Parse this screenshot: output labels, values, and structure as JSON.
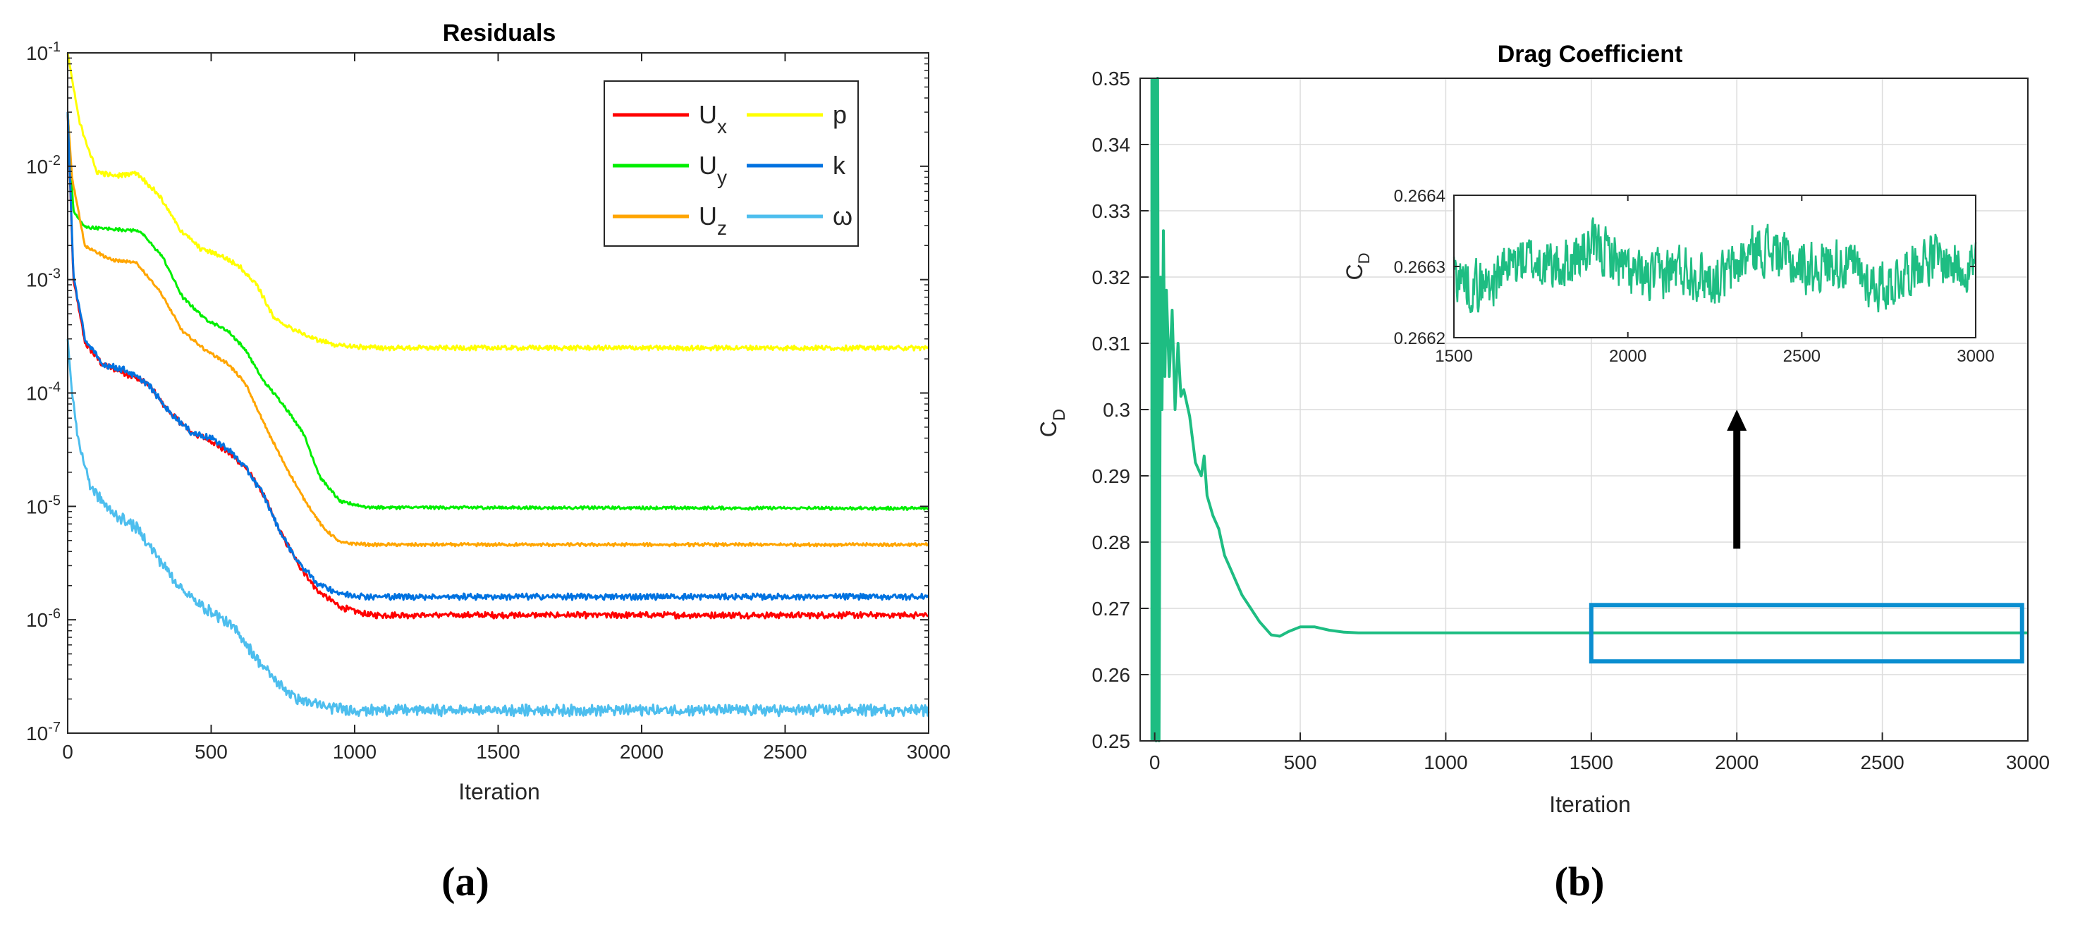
{
  "chart_data": [
    {
      "id": "a",
      "type": "line",
      "title": "Residuals",
      "caption": "(a)",
      "xlabel": "Iteration",
      "ylabel": "",
      "yscale": "log",
      "xlim": [
        0,
        3000
      ],
      "ylim": [
        1e-07,
        0.1
      ],
      "xticks": [
        0,
        500,
        1000,
        1500,
        2000,
        2500,
        3000
      ],
      "xtick_labels": [
        "0",
        "500",
        "1000",
        "1500",
        "2000",
        "2500",
        "3000"
      ],
      "yticks": [
        1e-07,
        1e-06,
        1e-05,
        0.0001,
        0.001,
        0.01,
        0.1
      ],
      "ytick_labels": [
        {
          "base": "10",
          "exp": "-7"
        },
        {
          "base": "10",
          "exp": "-6"
        },
        {
          "base": "10",
          "exp": "-5"
        },
        {
          "base": "10",
          "exp": "-4"
        },
        {
          "base": "10",
          "exp": "-3"
        },
        {
          "base": "10",
          "exp": "-2"
        },
        {
          "base": "10",
          "exp": "-1"
        }
      ],
      "legend_placement": "top-right",
      "series": [
        {
          "name": "Ux",
          "label": "U",
          "sub": "x",
          "color": "#ff0000",
          "noise": 0.05,
          "points": [
            [
              0,
              0.03
            ],
            [
              20,
              0.001
            ],
            [
              60,
              0.00028
            ],
            [
              120,
              0.00018
            ],
            [
              200,
              0.00015
            ],
            [
              280,
              0.00012
            ],
            [
              350,
              7e-05
            ],
            [
              430,
              4.5e-05
            ],
            [
              500,
              3.8e-05
            ],
            [
              560,
              3e-05
            ],
            [
              620,
              2.2e-05
            ],
            [
              680,
              1.3e-05
            ],
            [
              740,
              6e-06
            ],
            [
              800,
              3.2e-06
            ],
            [
              870,
              1.8e-06
            ],
            [
              950,
              1.3e-06
            ],
            [
              1050,
              1.1e-06
            ],
            [
              3000,
              1.1e-06
            ]
          ]
        },
        {
          "name": "Uy",
          "label": "U",
          "sub": "y",
          "color": "#00ee00",
          "noise": 0.025,
          "points": [
            [
              0,
              0.03
            ],
            [
              20,
              0.004
            ],
            [
              60,
              0.0029
            ],
            [
              150,
              0.0028
            ],
            [
              250,
              0.0027
            ],
            [
              330,
              0.0016
            ],
            [
              400,
              0.0007
            ],
            [
              480,
              0.00045
            ],
            [
              560,
              0.00035
            ],
            [
              620,
              0.00024
            ],
            [
              680,
              0.00013
            ],
            [
              750,
              8e-05
            ],
            [
              820,
              4.5e-05
            ],
            [
              880,
              1.8e-05
            ],
            [
              950,
              1.1e-05
            ],
            [
              1050,
              9.8e-06
            ],
            [
              3000,
              9.6e-06
            ]
          ]
        },
        {
          "name": "Uz",
          "label": "U",
          "sub": "z",
          "color": "#ffa500",
          "noise": 0.025,
          "points": [
            [
              0,
              0.03
            ],
            [
              15,
              0.008
            ],
            [
              60,
              0.002
            ],
            [
              150,
              0.0015
            ],
            [
              240,
              0.0014
            ],
            [
              320,
              0.0008
            ],
            [
              400,
              0.00035
            ],
            [
              480,
              0.00024
            ],
            [
              560,
              0.00018
            ],
            [
              620,
              0.00012
            ],
            [
              690,
              5e-05
            ],
            [
              750,
              2.5e-05
            ],
            [
              820,
              1.2e-05
            ],
            [
              890,
              6.5e-06
            ],
            [
              950,
              4.8e-06
            ],
            [
              1050,
              4.6e-06
            ],
            [
              3000,
              4.6e-06
            ]
          ]
        },
        {
          "name": "p",
          "label": "p",
          "sub": "",
          "color": "#ffff00",
          "noise": 0.04,
          "points": [
            [
              0,
              0.1
            ],
            [
              40,
              0.025
            ],
            [
              100,
              0.009
            ],
            [
              160,
              0.0082
            ],
            [
              240,
              0.0088
            ],
            [
              320,
              0.0055
            ],
            [
              390,
              0.0028
            ],
            [
              460,
              0.0019
            ],
            [
              540,
              0.0016
            ],
            [
              600,
              0.0013
            ],
            [
              660,
              0.0009
            ],
            [
              720,
              0.00045
            ],
            [
              800,
              0.00035
            ],
            [
              860,
              0.0003
            ],
            [
              950,
              0.00026
            ],
            [
              1100,
              0.00025
            ],
            [
              3000,
              0.00025
            ]
          ]
        },
        {
          "name": "k",
          "label": "k",
          "sub": "",
          "color": "#0072e0",
          "noise": 0.05,
          "points": [
            [
              0,
              0.03
            ],
            [
              20,
              0.0011
            ],
            [
              60,
              0.0003
            ],
            [
              120,
              0.00018
            ],
            [
              200,
              0.00016
            ],
            [
              280,
              0.00012
            ],
            [
              350,
              7e-05
            ],
            [
              430,
              4.5e-05
            ],
            [
              500,
              4e-05
            ],
            [
              560,
              3.2e-05
            ],
            [
              620,
              2.2e-05
            ],
            [
              680,
              1.3e-05
            ],
            [
              740,
              6e-06
            ],
            [
              800,
              3.3e-06
            ],
            [
              870,
              2.1e-06
            ],
            [
              950,
              1.7e-06
            ],
            [
              1050,
              1.6e-06
            ],
            [
              3000,
              1.6e-06
            ]
          ]
        },
        {
          "name": "omega",
          "label": "ω",
          "sub": "",
          "color": "#4dbeee",
          "noise": 0.09,
          "points": [
            [
              0,
              0.0003
            ],
            [
              15,
              0.0001
            ],
            [
              40,
              3.5e-05
            ],
            [
              80,
              1.5e-05
            ],
            [
              150,
              9e-06
            ],
            [
              240,
              6.5e-06
            ],
            [
              300,
              4e-06
            ],
            [
              380,
              2.1e-06
            ],
            [
              450,
              1.4e-06
            ],
            [
              520,
              1.1e-06
            ],
            [
              590,
              8e-07
            ],
            [
              660,
              4.5e-07
            ],
            [
              730,
              2.8e-07
            ],
            [
              800,
              2e-07
            ],
            [
              900,
              1.7e-07
            ],
            [
              1000,
              1.6e-07
            ],
            [
              3000,
              1.6e-07
            ]
          ]
        }
      ]
    },
    {
      "id": "b",
      "type": "line",
      "title": "Drag Coefficient",
      "caption": "(b)",
      "xlabel": "Iteration",
      "ylabel": {
        "base": "C",
        "sub": "D"
      },
      "xlim": [
        -50,
        3000
      ],
      "ylim": [
        0.25,
        0.35
      ],
      "xticks": [
        0,
        500,
        1000,
        1500,
        2000,
        2500,
        3000
      ],
      "xtick_labels": [
        "0",
        "500",
        "1000",
        "1500",
        "2000",
        "2500",
        "3000"
      ],
      "yticks": [
        0.25,
        0.26,
        0.27,
        0.28,
        0.29,
        0.3,
        0.31,
        0.32,
        0.33,
        0.34,
        0.35
      ],
      "ytick_labels": [
        "0.25",
        "0.26",
        "0.27",
        "0.28",
        "0.29",
        "0.3",
        "0.31",
        "0.32",
        "0.33",
        "0.34",
        "0.35"
      ],
      "grid": true,
      "series": [
        {
          "name": "CD",
          "color": "#1ebd82",
          "points": [
            [
              0,
              0.35
            ],
            [
              5,
              0.25
            ],
            [
              10,
              0.35
            ],
            [
              15,
              0.25
            ],
            [
              20,
              0.32
            ],
            [
              25,
              0.3
            ],
            [
              30,
              0.327
            ],
            [
              35,
              0.305
            ],
            [
              40,
              0.318
            ],
            [
              50,
              0.305
            ],
            [
              60,
              0.315
            ],
            [
              70,
              0.3
            ],
            [
              80,
              0.31
            ],
            [
              90,
              0.302
            ],
            [
              100,
              0.303
            ],
            [
              120,
              0.299
            ],
            [
              140,
              0.292
            ],
            [
              160,
              0.29
            ],
            [
              170,
              0.293
            ],
            [
              180,
              0.287
            ],
            [
              200,
              0.284
            ],
            [
              220,
              0.282
            ],
            [
              240,
              0.278
            ],
            [
              260,
              0.276
            ],
            [
              280,
              0.274
            ],
            [
              300,
              0.272
            ],
            [
              330,
              0.27
            ],
            [
              360,
              0.268
            ],
            [
              400,
              0.266
            ],
            [
              430,
              0.2658
            ],
            [
              460,
              0.2665
            ],
            [
              500,
              0.2672
            ],
            [
              550,
              0.2672
            ],
            [
              600,
              0.2667
            ],
            [
              650,
              0.2664
            ],
            [
              700,
              0.2663
            ],
            [
              3000,
              0.2663
            ]
          ]
        }
      ],
      "highlight_box": {
        "x": [
          1500,
          2980
        ],
        "y": [
          0.262,
          0.2705
        ],
        "color": "#0a8ed0"
      },
      "arrow": {
        "x": 2000,
        "y_from": 0.279,
        "y_to": 0.3,
        "color": "#000000"
      },
      "inset": {
        "xlim": [
          1500,
          3000
        ],
        "ylim": [
          0.2662,
          0.2664
        ],
        "xticks": [
          1500,
          2000,
          2500,
          3000
        ],
        "xtick_labels": [
          "1500",
          "2000",
          "2500",
          "3000"
        ],
        "yticks": [
          0.2662,
          0.2663,
          0.2664
        ],
        "ytick_labels": [
          "0.2662",
          "0.2663",
          "0.2664"
        ],
        "ylabel": {
          "base": "C",
          "sub": "D"
        },
        "mean": 0.2663,
        "amplitude": 6e-05,
        "color": "#1ebd82"
      }
    }
  ]
}
